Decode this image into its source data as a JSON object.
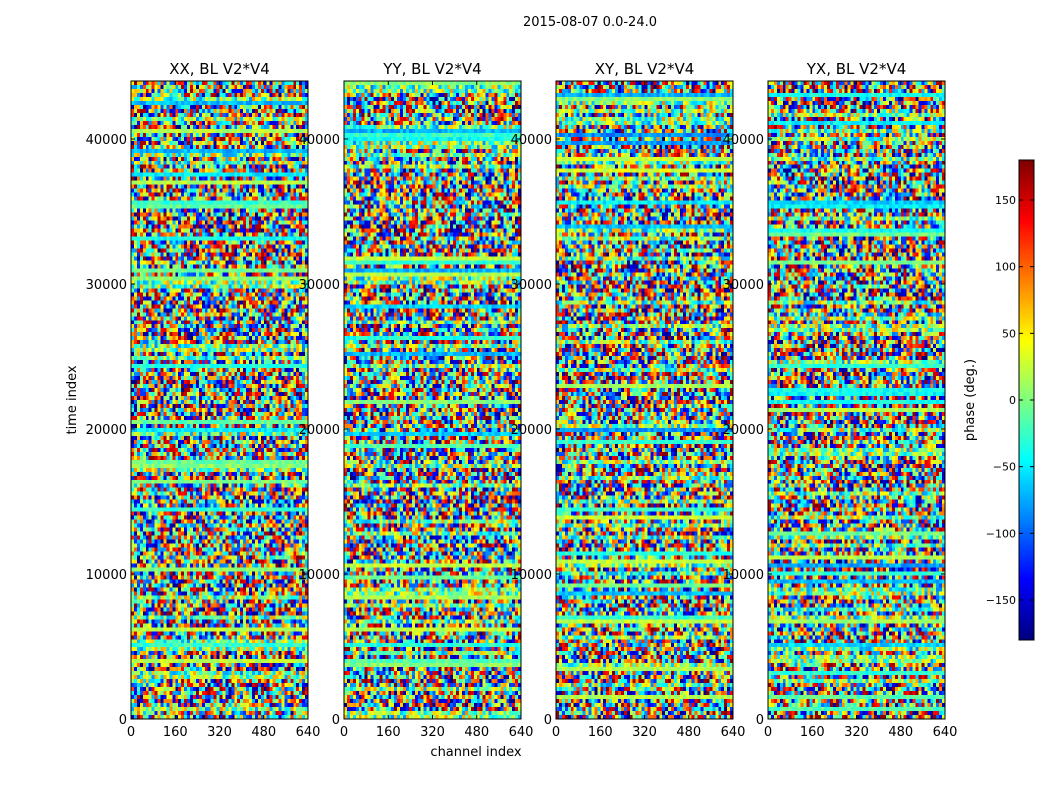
{
  "suptitle": "2015-08-07 0.0-24.0",
  "chart_data": {
    "type": "heatmap",
    "xlabel": "channel index",
    "ylabel": "time index",
    "xlim": [
      0,
      640
    ],
    "ylim": [
      0,
      44000
    ],
    "xticks": [
      0,
      160,
      320,
      480,
      640
    ],
    "yticks": [
      0,
      10000,
      20000,
      30000,
      40000
    ],
    "colormap": "jet",
    "panels": [
      {
        "title": "XX, BL V2*V4"
      },
      {
        "title": "YY, BL V2*V4"
      },
      {
        "title": "XY, BL V2*V4"
      },
      {
        "title": "YX, BL V2*V4"
      }
    ],
    "colorbar": {
      "label": "phase (deg.)",
      "range": [
        -180,
        180
      ],
      "ticks": [
        -150,
        -100,
        -50,
        0,
        50,
        100,
        150
      ]
    }
  }
}
